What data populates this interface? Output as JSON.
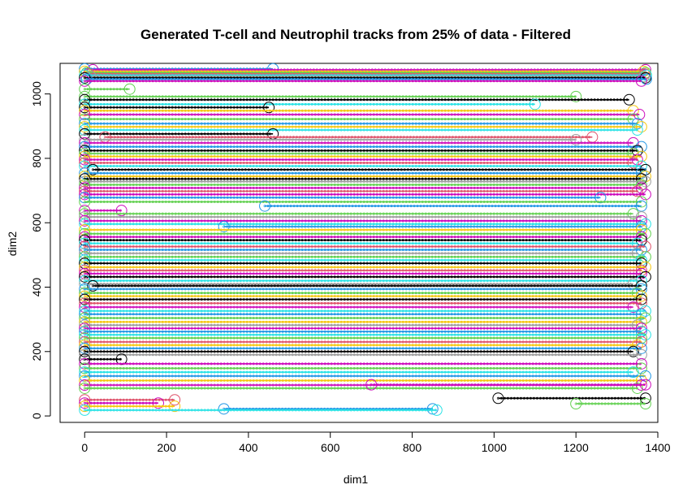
{
  "chart_data": {
    "type": "line",
    "title": "Generated T-cell and Neutrophil tracks from 25% of data - Filtered",
    "xlabel": "dim1",
    "ylabel": "dim2",
    "xlim": [
      -60,
      1400
    ],
    "ylim": [
      -20,
      1095
    ],
    "x_ticks": [
      0,
      200,
      400,
      600,
      800,
      1000,
      1200,
      1400
    ],
    "y_ticks": [
      0,
      200,
      400,
      600,
      800,
      1000
    ],
    "grid": false,
    "legend": "none",
    "palette": [
      "#000000",
      "#DF536B",
      "#61D04F",
      "#2297E6",
      "#28E2E5",
      "#CD0BBC",
      "#F5C710",
      "#9E9E9E"
    ],
    "series": [
      {
        "x": [
          0,
          460
        ],
        "y": [
          1078,
          1078
        ],
        "color": "#2297E6"
      },
      {
        "x": [
          20,
          1370
        ],
        "y": [
          1075,
          1075
        ],
        "color": "#CD0BBC"
      },
      {
        "x": [
          0,
          1365
        ],
        "y": [
          1070,
          1070
        ],
        "color": "#F5C710"
      },
      {
        "x": [
          5,
          1370
        ],
        "y": [
          1066,
          1066
        ],
        "color": "#61D04F"
      },
      {
        "x": [
          10,
          1368
        ],
        "y": [
          1062,
          1062
        ],
        "color": "#DF536B"
      },
      {
        "x": [
          0,
          1372
        ],
        "y": [
          1058,
          1058
        ],
        "color": "#28E2E5"
      },
      {
        "x": [
          15,
          1366
        ],
        "y": [
          1054,
          1054
        ],
        "color": "#9E9E9E"
      },
      {
        "x": [
          0,
          1370
        ],
        "y": [
          1050,
          1050
        ],
        "color": "#000000"
      },
      {
        "x": [
          5,
          1372
        ],
        "y": [
          1046,
          1046
        ],
        "color": "#2297E6"
      },
      {
        "x": [
          0,
          1360
        ],
        "y": [
          1040,
          1040
        ],
        "color": "#CD0BBC"
      },
      {
        "x": [
          0,
          110
        ],
        "y": [
          1015,
          1015
        ],
        "color": "#61D04F"
      },
      {
        "x": [
          0,
          1200
        ],
        "y": [
          992,
          992
        ],
        "color": "#61D04F"
      },
      {
        "x": [
          0,
          1330
        ],
        "y": [
          982,
          982
        ],
        "color": "#000000"
      },
      {
        "x": [
          0,
          1100
        ],
        "y": [
          968,
          968
        ],
        "color": "#28E2E5"
      },
      {
        "x": [
          0,
          450
        ],
        "y": [
          958,
          958
        ],
        "color": "#000000"
      },
      {
        "x": [
          0,
          1340
        ],
        "y": [
          948,
          948
        ],
        "color": "#F5C710"
      },
      {
        "x": [
          0,
          1355
        ],
        "y": [
          936,
          936
        ],
        "color": "#CD0BBC"
      },
      {
        "x": [
          0,
          1340
        ],
        "y": [
          922,
          922
        ],
        "color": "#61D04F"
      },
      {
        "x": [
          0,
          1350
        ],
        "y": [
          908,
          908
        ],
        "color": "#2297E6"
      },
      {
        "x": [
          0,
          1360
        ],
        "y": [
          898,
          898
        ],
        "color": "#F5C710"
      },
      {
        "x": [
          0,
          1350
        ],
        "y": [
          888,
          888
        ],
        "color": "#28E2E5"
      },
      {
        "x": [
          0,
          460
        ],
        "y": [
          876,
          876
        ],
        "color": "#000000"
      },
      {
        "x": [
          50,
          1240
        ],
        "y": [
          866,
          866
        ],
        "color": "#DF536B"
      },
      {
        "x": [
          0,
          1200
        ],
        "y": [
          858,
          858
        ],
        "color": "#9E9E9E"
      },
      {
        "x": [
          0,
          1340
        ],
        "y": [
          848,
          848
        ],
        "color": "#CD0BBC"
      },
      {
        "x": [
          0,
          1360
        ],
        "y": [
          836,
          836
        ],
        "color": "#2297E6"
      },
      {
        "x": [
          0,
          1350
        ],
        "y": [
          824,
          824
        ],
        "color": "#000000"
      },
      {
        "x": [
          0,
          1340
        ],
        "y": [
          815,
          815
        ],
        "color": "#61D04F"
      },
      {
        "x": [
          0,
          1360
        ],
        "y": [
          806,
          806
        ],
        "color": "#F5C710"
      },
      {
        "x": [
          0,
          1350
        ],
        "y": [
          796,
          796
        ],
        "color": "#CD0BBC"
      },
      {
        "x": [
          0,
          1340
        ],
        "y": [
          786,
          786
        ],
        "color": "#DF536B"
      },
      {
        "x": [
          0,
          1360
        ],
        "y": [
          776,
          776
        ],
        "color": "#28E2E5"
      },
      {
        "x": [
          20,
          1370
        ],
        "y": [
          765,
          765
        ],
        "color": "#000000"
      },
      {
        "x": [
          0,
          1360
        ],
        "y": [
          754,
          754
        ],
        "color": "#2297E6"
      },
      {
        "x": [
          0,
          1370
        ],
        "y": [
          744,
          744
        ],
        "color": "#F5C710"
      },
      {
        "x": [
          0,
          1360
        ],
        "y": [
          736,
          736
        ],
        "color": "#000000"
      },
      {
        "x": [
          0,
          1370
        ],
        "y": [
          728,
          728
        ],
        "color": "#9E9E9E"
      },
      {
        "x": [
          0,
          1360
        ],
        "y": [
          718,
          718
        ],
        "color": "#61D04F"
      },
      {
        "x": [
          0,
          1360
        ],
        "y": [
          708,
          708
        ],
        "color": "#CD0BBC"
      },
      {
        "x": [
          0,
          1350
        ],
        "y": [
          698,
          698
        ],
        "color": "#DF536B"
      },
      {
        "x": [
          0,
          1370
        ],
        "y": [
          688,
          688
        ],
        "color": "#CD0BBC"
      },
      {
        "x": [
          0,
          1260
        ],
        "y": [
          678,
          678
        ],
        "color": "#2297E6"
      },
      {
        "x": [
          0,
          1360
        ],
        "y": [
          665,
          665
        ],
        "color": "#61D04F"
      },
      {
        "x": [
          440,
          1360
        ],
        "y": [
          652,
          652
        ],
        "color": "#2297E6"
      },
      {
        "x": [
          0,
          90
        ],
        "y": [
          638,
          638
        ],
        "color": "#CD0BBC"
      },
      {
        "x": [
          0,
          1340
        ],
        "y": [
          628,
          628
        ],
        "color": "#61D04F"
      },
      {
        "x": [
          0,
          1360
        ],
        "y": [
          618,
          618
        ],
        "color": "#9E9E9E"
      },
      {
        "x": [
          0,
          1360
        ],
        "y": [
          606,
          606
        ],
        "color": "#CD0BBC"
      },
      {
        "x": [
          0,
          1370
        ],
        "y": [
          596,
          596
        ],
        "color": "#28E2E5"
      },
      {
        "x": [
          340,
          1360
        ],
        "y": [
          588,
          588
        ],
        "color": "#2297E6"
      },
      {
        "x": [
          0,
          1360
        ],
        "y": [
          578,
          578
        ],
        "color": "#F5C710"
      },
      {
        "x": [
          0,
          1370
        ],
        "y": [
          566,
          566
        ],
        "color": "#61D04F"
      },
      {
        "x": [
          0,
          1360
        ],
        "y": [
          556,
          556
        ],
        "color": "#CD0BBC"
      },
      {
        "x": [
          0,
          1360
        ],
        "y": [
          546,
          546
        ],
        "color": "#000000"
      },
      {
        "x": [
          0,
          1350
        ],
        "y": [
          536,
          536
        ],
        "color": "#28E2E5"
      },
      {
        "x": [
          0,
          1370
        ],
        "y": [
          526,
          526
        ],
        "color": "#DF536B"
      },
      {
        "x": [
          0,
          1360
        ],
        "y": [
          516,
          516
        ],
        "color": "#2297E6"
      },
      {
        "x": [
          0,
          1350
        ],
        "y": [
          505,
          505
        ],
        "color": "#9E9E9E"
      },
      {
        "x": [
          0,
          1370
        ],
        "y": [
          494,
          494
        ],
        "color": "#61D04F"
      },
      {
        "x": [
          0,
          1360
        ],
        "y": [
          484,
          484
        ],
        "color": "#28E2E5"
      },
      {
        "x": [
          0,
          1360
        ],
        "y": [
          474,
          474
        ],
        "color": "#000000"
      },
      {
        "x": [
          0,
          1370
        ],
        "y": [
          462,
          462
        ],
        "color": "#F5C710"
      },
      {
        "x": [
          0,
          1360
        ],
        "y": [
          452,
          452
        ],
        "color": "#DF536B"
      },
      {
        "x": [
          0,
          1360
        ],
        "y": [
          442,
          442
        ],
        "color": "#CD0BBC"
      },
      {
        "x": [
          0,
          1370
        ],
        "y": [
          432,
          432
        ],
        "color": "#000000"
      },
      {
        "x": [
          0,
          1360
        ],
        "y": [
          420,
          420
        ],
        "color": "#28E2E5"
      },
      {
        "x": [
          0,
          1340
        ],
        "y": [
          410,
          410
        ],
        "color": "#9E9E9E"
      },
      {
        "x": [
          20,
          1360
        ],
        "y": [
          404,
          404
        ],
        "color": "#000000"
      },
      {
        "x": [
          0,
          1360
        ],
        "y": [
          394,
          394
        ],
        "color": "#2297E6"
      },
      {
        "x": [
          0,
          1350
        ],
        "y": [
          382,
          382
        ],
        "color": "#61D04F"
      },
      {
        "x": [
          0,
          1360
        ],
        "y": [
          372,
          372
        ],
        "color": "#F5C710"
      },
      {
        "x": [
          0,
          1360
        ],
        "y": [
          362,
          362
        ],
        "color": "#000000"
      },
      {
        "x": [
          0,
          1360
        ],
        "y": [
          350,
          350
        ],
        "color": "#DF536B"
      },
      {
        "x": [
          0,
          1340
        ],
        "y": [
          338,
          338
        ],
        "color": "#CD0BBC"
      },
      {
        "x": [
          0,
          1370
        ],
        "y": [
          326,
          326
        ],
        "color": "#28E2E5"
      },
      {
        "x": [
          0,
          1360
        ],
        "y": [
          316,
          316
        ],
        "color": "#2297E6"
      },
      {
        "x": [
          0,
          1370
        ],
        "y": [
          304,
          304
        ],
        "color": "#61D04F"
      },
      {
        "x": [
          0,
          1360
        ],
        "y": [
          292,
          292
        ],
        "color": "#F5C710"
      },
      {
        "x": [
          0,
          1350
        ],
        "y": [
          282,
          282
        ],
        "color": "#9E9E9E"
      },
      {
        "x": [
          0,
          1360
        ],
        "y": [
          272,
          272
        ],
        "color": "#CD0BBC"
      },
      {
        "x": [
          0,
          1360
        ],
        "y": [
          262,
          262
        ],
        "color": "#2297E6"
      },
      {
        "x": [
          0,
          1370
        ],
        "y": [
          252,
          252
        ],
        "color": "#28E2E5"
      },
      {
        "x": [
          0,
          1360
        ],
        "y": [
          242,
          242
        ],
        "color": "#61D04F"
      },
      {
        "x": [
          0,
          1360
        ],
        "y": [
          230,
          230
        ],
        "color": "#DF536B"
      },
      {
        "x": [
          0,
          1350
        ],
        "y": [
          220,
          220
        ],
        "color": "#F5C710"
      },
      {
        "x": [
          0,
          1360
        ],
        "y": [
          210,
          210
        ],
        "color": "#2297E6"
      },
      {
        "x": [
          0,
          1340
        ],
        "y": [
          200,
          200
        ],
        "color": "#000000"
      },
      {
        "x": [
          0,
          1360
        ],
        "y": [
          190,
          190
        ],
        "color": "#9E9E9E"
      },
      {
        "x": [
          0,
          90
        ],
        "y": [
          176,
          176
        ],
        "color": "#000000"
      },
      {
        "x": [
          0,
          1360
        ],
        "y": [
          162,
          162
        ],
        "color": "#CD0BBC"
      },
      {
        "x": [
          0,
          1360
        ],
        "y": [
          148,
          148
        ],
        "color": "#61D04F"
      },
      {
        "x": [
          0,
          1340
        ],
        "y": [
          136,
          136
        ],
        "color": "#28E2E5"
      },
      {
        "x": [
          0,
          1370
        ],
        "y": [
          124,
          124
        ],
        "color": "#2297E6"
      },
      {
        "x": [
          0,
          1360
        ],
        "y": [
          110,
          110
        ],
        "color": "#F5C710"
      },
      {
        "x": [
          0,
          1360
        ],
        "y": [
          96,
          96
        ],
        "color": "#CD0BBC"
      },
      {
        "x": [
          0,
          1350
        ],
        "y": [
          86,
          86
        ],
        "color": "#61D04F"
      },
      {
        "x": [
          0,
          220
        ],
        "y": [
          50,
          50
        ],
        "color": "#DF536B"
      },
      {
        "x": [
          0,
          180
        ],
        "y": [
          40,
          40
        ],
        "color": "#CD0BBC"
      },
      {
        "x": [
          0,
          220
        ],
        "y": [
          30,
          30
        ],
        "color": "#F5C710"
      },
      {
        "x": [
          1010,
          1370
        ],
        "y": [
          55,
          55
        ],
        "color": "#000000"
      },
      {
        "x": [
          1200,
          1370
        ],
        "y": [
          38,
          38
        ],
        "color": "#61D04F"
      },
      {
        "x": [
          340,
          850
        ],
        "y": [
          22,
          22
        ],
        "color": "#2297E6"
      },
      {
        "x": [
          0,
          860
        ],
        "y": [
          18,
          18
        ],
        "color": "#28E2E5"
      },
      {
        "x": [
          700,
          1370
        ],
        "y": [
          97,
          97
        ],
        "color": "#CD0BBC"
      }
    ]
  }
}
